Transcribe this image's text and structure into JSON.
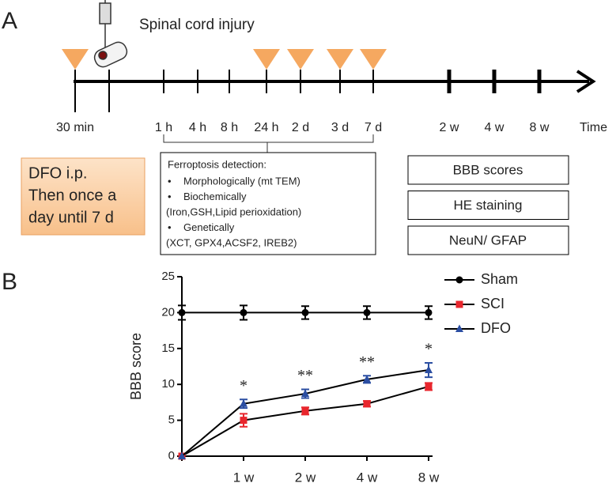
{
  "panel_a": {
    "label": "A",
    "event": "Spinal cord injury",
    "timeline_labels": [
      "30 min",
      "1 h",
      "4 h",
      "8 h",
      "24 h",
      "2 d",
      "3 d",
      "7 d",
      "2 w",
      "4 w",
      "8 w"
    ],
    "axis_label": "Time",
    "treatment_box": [
      "DFO i.p.",
      "Then once a",
      "day until 7 d"
    ],
    "detection_box": {
      "title": "Ferroptosis detection:",
      "lines": [
        {
          "bullet": "•",
          "text": "Morphologically (mt TEM)"
        },
        {
          "bullet": "•",
          "text": "Biochemically"
        },
        {
          "bullet": null,
          "text": "(Iron,GSH,Lipid perioxidation)"
        },
        {
          "bullet": "•",
          "text": "Genetically"
        },
        {
          "bullet": null,
          "text": "(XCT, GPX4,ACSF2, IREB2)"
        }
      ]
    },
    "assessments": [
      "BBB scores",
      "HE staining",
      "NeuN/ GFAP"
    ]
  },
  "panel_b_label": "B",
  "chart_data": {
    "type": "line",
    "y_label": "BBB score",
    "categories": [
      null,
      "1 w",
      "2 w",
      "4 w",
      "8 w"
    ],
    "series": [
      {
        "name": "Sham",
        "color": "#000000",
        "marker": "circle",
        "values": [
          20,
          20,
          20,
          20,
          20
        ],
        "errors": [
          1,
          1,
          0.9,
          0.9,
          0.9
        ]
      },
      {
        "name": "SCI",
        "color": "#e8262d",
        "marker": "square",
        "values": [
          0,
          5,
          6.3,
          7.3,
          9.7
        ],
        "errors": [
          0,
          0.9,
          0.5,
          0.4,
          0.5
        ]
      },
      {
        "name": "DFO",
        "color": "#2b4ea2",
        "marker": "triangle",
        "values": [
          0,
          7.3,
          8.7,
          10.7,
          12
        ],
        "errors": [
          0,
          0.6,
          0.6,
          0.5,
          1
        ]
      }
    ],
    "annotations": [
      null,
      "*",
      "**",
      "**",
      "*"
    ],
    "ylim": [
      0,
      25
    ],
    "yticks": [
      0,
      5,
      10,
      15,
      20,
      25
    ]
  }
}
